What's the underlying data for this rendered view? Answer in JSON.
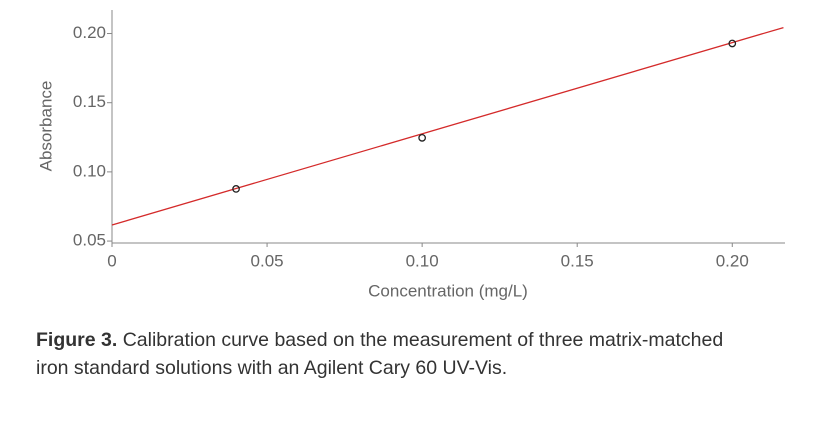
{
  "chart_data": {
    "type": "scatter",
    "x_label": "Concentration (mg/L)",
    "y_label": "Absorbance",
    "points": {
      "x": [
        0.04,
        0.1,
        0.2
      ],
      "values": [
        0.0877,
        0.1246,
        0.1928
      ],
      "color": "#222222"
    },
    "fit": {
      "x": [
        0,
        0.2165
      ],
      "values": [
        0.0616,
        0.2043
      ],
      "color": "#d42a2a"
    },
    "xlim": [
      0,
      0.217
    ],
    "ylim": [
      0.0486,
      0.217
    ],
    "xticks": [
      0,
      0.05,
      {
        "value": 0.1,
        "label": "0.10"
      },
      0.15,
      {
        "value": 0.2,
        "label": "0.20"
      }
    ],
    "yticks": [
      0.05,
      {
        "value": 0.1,
        "label": "0.10"
      },
      0.15,
      {
        "value": 0.2,
        "label": "0.20"
      }
    ]
  },
  "caption": {
    "label": "Figure 3.",
    "text": "Calibration curve based on the measurement of three matrix-matched iron standard solutions with an Agilent Cary 60 UV-Vis."
  }
}
